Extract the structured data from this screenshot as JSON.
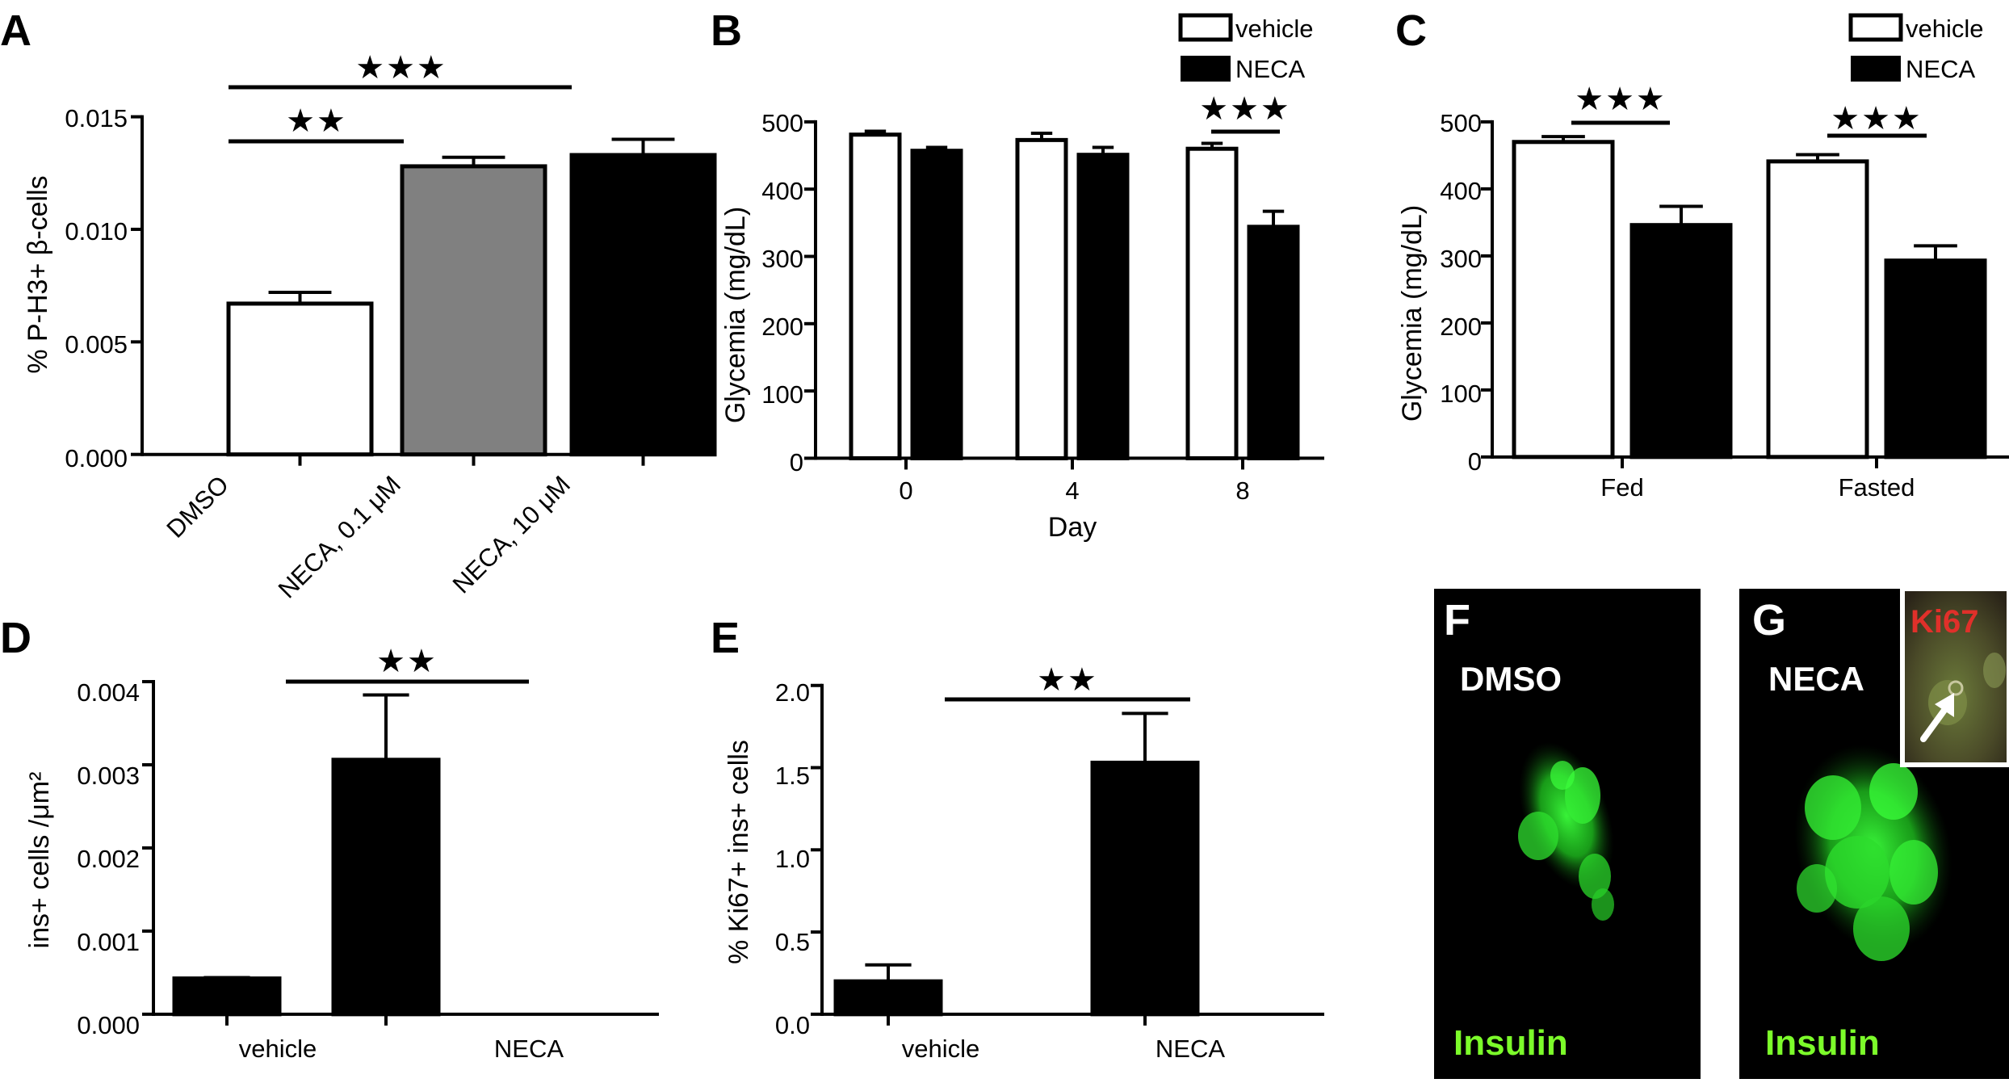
{
  "panels": [
    {
      "letter": "A",
      "ylabel": "%  P-H3+ β-cells",
      "ylim": [
        0,
        0.015
      ],
      "ticks": [
        "0.000",
        "0.005",
        "0.010",
        "0.015"
      ],
      "categories": [
        "DMSO",
        "NECA, 0.1 μM",
        "NECA, 10 μM"
      ],
      "sig": [
        "★★",
        "★★★"
      ]
    },
    {
      "letter": "B",
      "ylabel": "Glycemia  (mg/dL)",
      "xlabel": "Day",
      "ylim": [
        0,
        500
      ],
      "ticks": [
        "0",
        "100",
        "200",
        "300",
        "400",
        "500"
      ],
      "categories": [
        "0",
        "4",
        "8"
      ],
      "legend": [
        "vehicle",
        "NECA"
      ],
      "sig": [
        "★★★"
      ]
    },
    {
      "letter": "C",
      "ylabel": "Glycemia  (mg/dL)",
      "ylim": [
        0,
        500
      ],
      "ticks": [
        "0",
        "100",
        "200",
        "300",
        "400",
        "500"
      ],
      "categories": [
        "Fed",
        "Fasted"
      ],
      "legend": [
        "vehicle",
        "NECA"
      ],
      "sig": [
        "★★★",
        "★★★"
      ]
    },
    {
      "letter": "D",
      "ylabel": "ins+ cells /μm²",
      "ylim": [
        0,
        0.004
      ],
      "ticks": [
        "0.000",
        "0.001",
        "0.002",
        "0.003",
        "0.004"
      ],
      "categories": [
        "vehicle",
        "NECA"
      ],
      "sig": [
        "★★"
      ]
    },
    {
      "letter": "E",
      "ylabel": "% Ki67+ ins+ cells",
      "ylim": [
        0,
        2.0
      ],
      "ticks": [
        "0.0",
        "0.5",
        "1.0",
        "1.5",
        "2.0"
      ],
      "categories": [
        "vehicle",
        "NECA"
      ],
      "sig": [
        "★★"
      ]
    }
  ],
  "micrographs": [
    {
      "letter": "F",
      "label": "DMSO",
      "stain": "Insulin"
    },
    {
      "letter": "G",
      "label": "NECA",
      "stain": "Insulin",
      "inset": "Ki67"
    }
  ],
  "colors": {
    "vehicle": "#ffffff",
    "neca": "#000000",
    "neca_low": "#808080",
    "insulin_text": "#7CFC2A",
    "ki67_text": "#E0302A"
  },
  "chart_data": [
    {
      "type": "bar",
      "categories": [
        "DMSO",
        "NECA, 0.1 μM",
        "NECA, 10 μM"
      ],
      "values": [
        0.0067,
        0.0128,
        0.0133
      ],
      "errors": [
        0.0005,
        0.0004,
        0.0007
      ],
      "ylabel": "%  P-H3+ β-cells",
      "ylim": [
        0,
        0.015
      ],
      "grid": false
    },
    {
      "type": "bar",
      "categories": [
        "0",
        "4",
        "8"
      ],
      "xlabel": "Day",
      "ylabel": "Glycemia  (mg/dL)",
      "ylim": [
        0,
        500
      ],
      "series": [
        {
          "name": "vehicle",
          "values": [
            481,
            473,
            460
          ],
          "errors": [
            5,
            10,
            8
          ]
        },
        {
          "name": "NECA",
          "values": [
            457,
            451,
            344
          ],
          "errors": [
            5,
            11,
            23
          ]
        }
      ],
      "legend": "top-right",
      "grid": false
    },
    {
      "type": "bar",
      "categories": [
        "Fed",
        "Fasted"
      ],
      "ylabel": "Glycemia  (mg/dL)",
      "ylim": [
        0,
        500
      ],
      "series": [
        {
          "name": "vehicle",
          "values": [
            470,
            441
          ],
          "errors": [
            8,
            10
          ]
        },
        {
          "name": "NECA",
          "values": [
            346,
            293
          ],
          "errors": [
            28,
            22
          ]
        }
      ],
      "legend": "top-right",
      "grid": false
    },
    {
      "type": "bar",
      "categories": [
        "vehicle",
        "NECA"
      ],
      "values": [
        0.00043,
        0.00306
      ],
      "errors": [
        1e-05,
        0.00078
      ],
      "ylabel": "ins+ cells /μm²",
      "ylim": [
        0,
        0.004
      ],
      "grid": false
    },
    {
      "type": "bar",
      "categories": [
        "vehicle",
        "NECA"
      ],
      "values": [
        0.2,
        1.53
      ],
      "errors": [
        0.1,
        0.3
      ],
      "ylabel": "% Ki67+ ins+ cells",
      "ylim": [
        0,
        2.0
      ],
      "grid": false
    }
  ]
}
